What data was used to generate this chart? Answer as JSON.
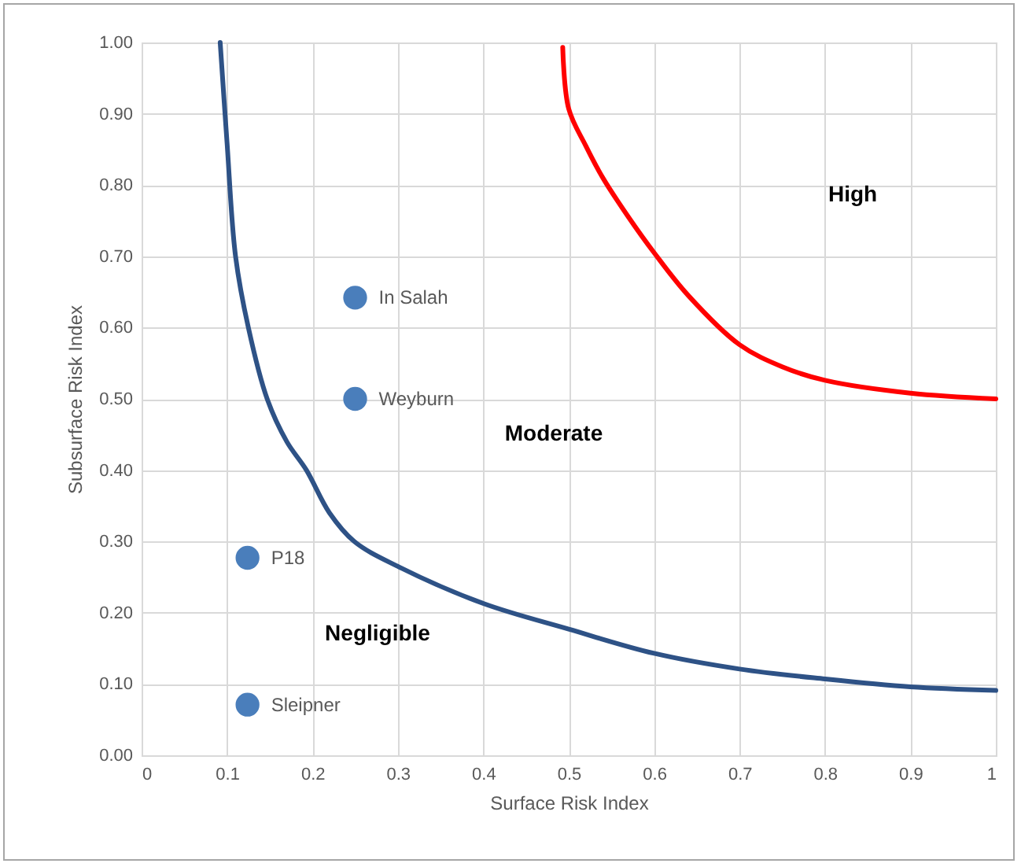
{
  "chart_data": {
    "type": "scatter",
    "xlabel": "Surface Risk Index",
    "ylabel": "Subsurface Risk Index",
    "xlim": [
      0,
      1
    ],
    "ylim": [
      0,
      1
    ],
    "xticks": [
      {
        "value": 0,
        "label": "0"
      },
      0.1,
      0.2,
      0.3,
      0.4,
      0.5,
      0.6,
      0.7,
      0.8,
      0.9,
      {
        "value": 1,
        "label": "1"
      }
    ],
    "yticks": [
      {
        "value": 0,
        "label": "0.00"
      },
      {
        "value": 0.1,
        "label": "0.10"
      },
      {
        "value": 0.2,
        "label": "0.20"
      },
      {
        "value": 0.3,
        "label": "0.30"
      },
      {
        "value": 0.4,
        "label": "0.40"
      },
      {
        "value": 0.5,
        "label": "0.50"
      },
      {
        "value": 0.6,
        "label": "0.60"
      },
      {
        "value": 0.7,
        "label": "0.70"
      },
      {
        "value": 0.8,
        "label": "0.80"
      },
      {
        "value": 0.9,
        "label": "0.90"
      },
      {
        "value": 1,
        "label": "1.00"
      }
    ],
    "grid": true,
    "series": [
      {
        "type": "line",
        "color": "#2e5286",
        "marker": "none",
        "line_style": "solid",
        "x": [
          0.092,
          0.1,
          0.11,
          0.125,
          0.147,
          0.17,
          0.193,
          0.22,
          0.249,
          0.3,
          0.4,
          0.5,
          0.6,
          0.7,
          0.8,
          0.9,
          1.0
        ],
        "values": [
          1.0,
          0.86,
          0.7,
          0.6,
          0.5,
          0.44,
          0.4,
          0.34,
          0.3,
          0.265,
          0.213,
          0.177,
          0.143,
          0.121,
          0.107,
          0.096,
          0.091
        ]
      },
      {
        "type": "line",
        "color": "#ff0000",
        "marker": "none",
        "line_style": "solid",
        "x": [
          0.493,
          0.5,
          0.52,
          0.54,
          0.57,
          0.6,
          0.64,
          0.7,
          0.75,
          0.8,
          0.9,
          1.0
        ],
        "values": [
          0.993,
          0.907,
          0.855,
          0.81,
          0.755,
          0.705,
          0.645,
          0.576,
          0.545,
          0.526,
          0.508,
          0.5
        ]
      },
      {
        "name": "In Salah",
        "color": "#4a7ebb",
        "marker": "circle",
        "x": [
          0.25
        ],
        "values": [
          0.642
        ]
      },
      {
        "name": "Weyburn",
        "color": "#4a7ebb",
        "marker": "circle",
        "x": [
          0.25
        ],
        "values": [
          0.5
        ]
      },
      {
        "name": "P18",
        "color": "#4a7ebb",
        "marker": "circle",
        "x": [
          0.124
        ],
        "values": [
          0.277
        ]
      },
      {
        "name": "Sleipner",
        "color": "#4a7ebb",
        "marker": "circle",
        "x": [
          0.124
        ],
        "values": [
          0.071
        ]
      }
    ],
    "annotations": [
      "Negligible",
      "Moderate",
      "High"
    ]
  }
}
